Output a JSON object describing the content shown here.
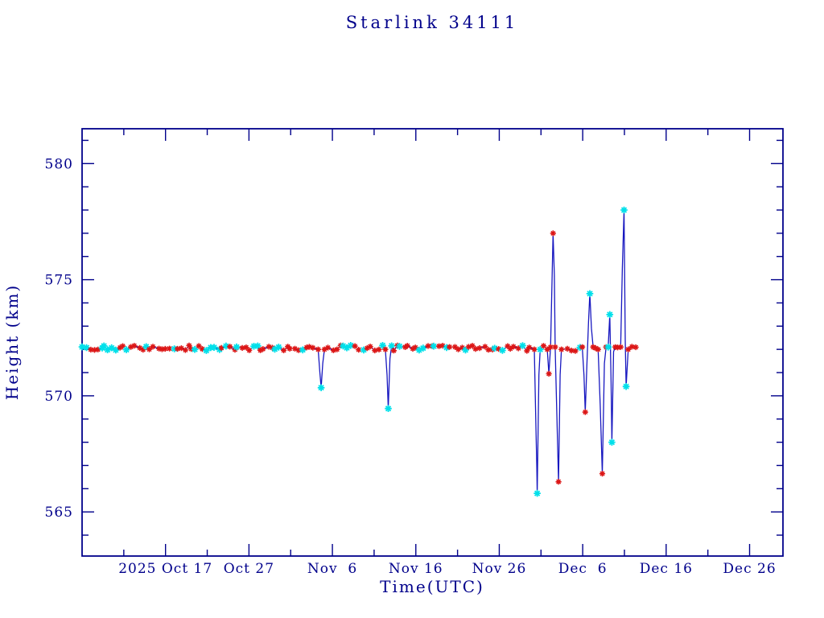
{
  "chart_data": {
    "type": "line",
    "title": "Starlink 34111",
    "xlabel": "Time(UTC)",
    "ylabel": "Height (km)",
    "x_axis": {
      "start_date": "2025-10-07",
      "end_date": "2025-12-30",
      "total_days": 84,
      "major_ticks": [
        {
          "day": 10,
          "label": "2025 Oct 17"
        },
        {
          "day": 20,
          "label": "Oct 27"
        },
        {
          "day": 30,
          "label": "Nov  6"
        },
        {
          "day": 40,
          "label": "Nov 16"
        },
        {
          "day": 50,
          "label": "Nov 26"
        },
        {
          "day": 60,
          "label": "Dec  6"
        },
        {
          "day": 70,
          "label": "Dec 16"
        },
        {
          "day": 80,
          "label": "Dec 26"
        }
      ],
      "minor_tick_days": [
        5,
        15,
        25,
        35,
        45,
        55,
        65,
        75
      ]
    },
    "y_axis": {
      "min": 563.1,
      "max": 581.5,
      "unit": "km",
      "major_ticks": [
        565,
        570,
        575,
        580
      ],
      "minor_ticks": [
        564,
        566,
        567,
        568,
        569,
        571,
        572,
        573,
        574,
        576,
        577,
        578,
        579,
        581
      ]
    },
    "baseline": {
      "start_day": 0,
      "end_day": 66.5,
      "mean_height_km": 572.05,
      "noise_km": 0.12,
      "samples_per_day": 2.2,
      "cyan_fraction": 0.35
    },
    "events": [
      [
        [
          28.3,
          572.0,
          "r"
        ],
        [
          28.5,
          571.0,
          ""
        ],
        [
          28.65,
          570.35,
          "c"
        ],
        [
          28.85,
          571.4,
          ""
        ],
        [
          29.05,
          572.0,
          "r"
        ]
      ],
      [
        [
          36.35,
          572.0,
          "r"
        ],
        [
          36.55,
          570.9,
          ""
        ],
        [
          36.7,
          569.45,
          "c"
        ],
        [
          36.9,
          571.6,
          ""
        ],
        [
          37.1,
          572.15,
          "c"
        ]
      ],
      [
        [
          54.2,
          572.0,
          "r"
        ],
        [
          54.4,
          568.5,
          ""
        ],
        [
          54.5,
          566.9,
          ""
        ],
        [
          54.55,
          565.8,
          "c"
        ],
        [
          54.75,
          570.9,
          ""
        ],
        [
          54.9,
          572.0,
          "c"
        ]
      ],
      [
        [
          55.75,
          572.0,
          "r"
        ],
        [
          55.95,
          570.95,
          "r"
        ],
        [
          56.15,
          572.1,
          "r"
        ],
        [
          56.3,
          574.6,
          ""
        ],
        [
          56.45,
          577.0,
          "r"
        ],
        [
          56.6,
          575.2,
          ""
        ],
        [
          56.7,
          572.1,
          "r"
        ],
        [
          56.9,
          569.2,
          ""
        ],
        [
          57.1,
          566.3,
          "r"
        ],
        [
          57.3,
          570.9,
          ""
        ],
        [
          57.45,
          572.0,
          "r"
        ]
      ],
      [
        [
          59.95,
          572.1,
          "r"
        ],
        [
          60.15,
          570.9,
          ""
        ],
        [
          60.3,
          569.3,
          "r"
        ],
        [
          60.5,
          571.3,
          ""
        ],
        [
          60.7,
          573.2,
          ""
        ],
        [
          60.85,
          574.4,
          "c"
        ],
        [
          61.05,
          572.9,
          ""
        ],
        [
          61.25,
          572.1,
          "r"
        ],
        [
          61.55,
          572.05,
          "r"
        ],
        [
          61.85,
          572.0,
          "r"
        ],
        [
          62.1,
          569.6,
          ""
        ],
        [
          62.35,
          566.65,
          "r"
        ],
        [
          62.6,
          571.4,
          ""
        ],
        [
          62.8,
          572.1,
          "r"
        ],
        [
          63.05,
          572.1,
          "c"
        ],
        [
          63.25,
          573.5,
          "c"
        ],
        [
          63.4,
          570.6,
          ""
        ],
        [
          63.5,
          568.0,
          "c"
        ],
        [
          63.7,
          571.9,
          ""
        ],
        [
          63.9,
          572.1,
          "r"
        ]
      ],
      [
        [
          64.55,
          572.1,
          "r"
        ],
        [
          64.75,
          575.5,
          ""
        ],
        [
          64.95,
          578.0,
          "c"
        ],
        [
          65.1,
          572.4,
          ""
        ],
        [
          65.2,
          570.4,
          "c"
        ],
        [
          65.45,
          572.0,
          "r"
        ]
      ]
    ],
    "colors": {
      "axis_and_text": "#00008B",
      "line": "#1818C0",
      "marker_red": "#DC1616",
      "marker_cyan": "#00E0EA",
      "background": "#FFFFFF"
    }
  }
}
